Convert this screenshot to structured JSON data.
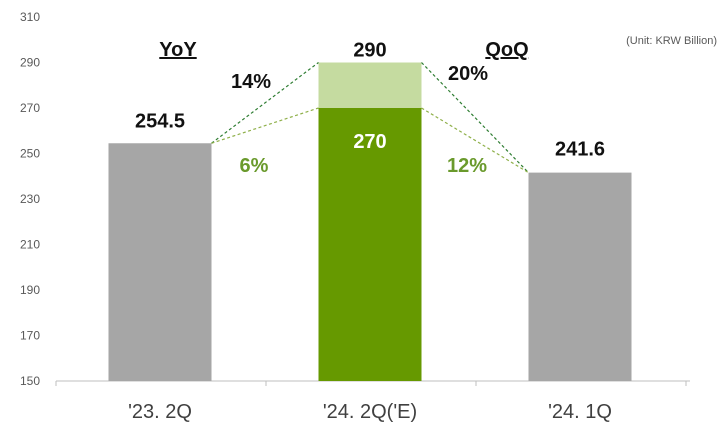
{
  "chart_data": {
    "type": "bar",
    "unit_label": "(Unit: KRW Billion)",
    "ylim": [
      150,
      310
    ],
    "yticks": [
      150,
      170,
      190,
      210,
      230,
      250,
      270,
      290,
      310
    ],
    "categories": [
      "'23. 2Q",
      "'24. 2Q('E)",
      "'24. 1Q"
    ],
    "bars": [
      {
        "category": "'23. 2Q",
        "value": 254.5,
        "label": "254.5",
        "color": "#a6a6a6"
      },
      {
        "category": "'24. 2Q('E)",
        "low": 270,
        "high": 290,
        "low_label": "270",
        "high_label": "290",
        "low_color": "#669900",
        "high_color": "#c5dba0"
      },
      {
        "category": "'24. 1Q",
        "value": 241.6,
        "label": "241.6",
        "color": "#a6a6a6"
      }
    ],
    "comparisons": {
      "yoy": {
        "title": "YoY",
        "high_pct": "14%",
        "low_pct": "6%"
      },
      "qoq": {
        "title": "QoQ",
        "high_pct": "20%",
        "low_pct": "12%"
      }
    },
    "colors": {
      "dark_line": "#2e7d32",
      "light_line": "#8fb04a",
      "axis": "#bfbfbf"
    }
  }
}
